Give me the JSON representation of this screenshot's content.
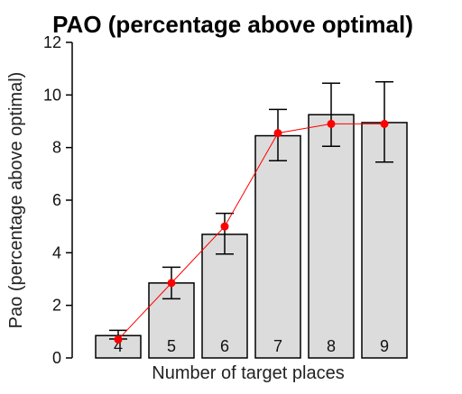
{
  "chart_data": {
    "type": "bar",
    "title": "PAO (percentage above optimal)",
    "xlabel": "Number of target places",
    "ylabel": "Pao (percentage above optimal)",
    "ylim": [
      0,
      12
    ],
    "yticks": [
      0,
      2,
      4,
      6,
      8,
      10,
      12
    ],
    "categories": [
      "4",
      "5",
      "6",
      "7",
      "8",
      "9"
    ],
    "values": [
      0.85,
      2.85,
      4.7,
      8.45,
      9.25,
      8.95
    ],
    "error_low": [
      0.72,
      2.25,
      3.95,
      7.5,
      8.05,
      7.45
    ],
    "error_high": [
      1.05,
      3.45,
      5.5,
      9.45,
      10.45,
      10.5
    ],
    "line_series": {
      "values": [
        0.7,
        2.85,
        5.0,
        8.55,
        8.9,
        8.9
      ],
      "color": "#ff0000"
    },
    "colors": {
      "bar_fill": "#dcdcdc",
      "bar_stroke": "#000000",
      "axis": "#000000",
      "error_bar": "#000000"
    },
    "grid": false
  }
}
